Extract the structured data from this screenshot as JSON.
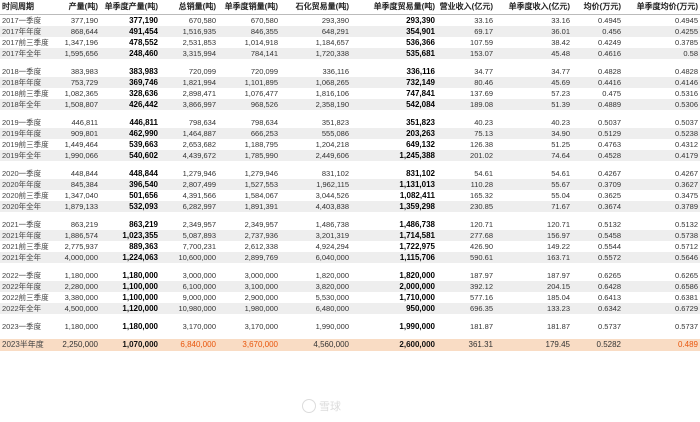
{
  "headers": [
    "时间周期",
    "产量(吨)",
    "单季度产量(吨)",
    "总销量(吨)",
    "单季度销量(吨)",
    "石化贸易量(吨)",
    "单季度贸易量(吨)",
    "营业收入(亿元)",
    "单季度收入(亿元)",
    "均价(万元)",
    "单季度均价(万元)"
  ],
  "bold_cols": [
    2,
    6
  ],
  "total_highlight_cols": [
    2,
    3,
    4,
    6,
    10
  ],
  "groups": [
    [
      [
        "2017一季度",
        "377,190",
        "377,190",
        "670,580",
        "670,580",
        "293,390",
        "293,390",
        "33.16",
        "33.16",
        "0.4945",
        "0.4945"
      ],
      [
        "2017年年度",
        "868,644",
        "491,454",
        "1,516,935",
        "846,355",
        "648,291",
        "354,901",
        "69.17",
        "36.01",
        "0.456",
        "0.4255"
      ],
      [
        "2017前三季度",
        "1,347,196",
        "478,552",
        "2,531,853",
        "1,014,918",
        "1,184,657",
        "536,366",
        "107.59",
        "38.42",
        "0.4249",
        "0.3785"
      ],
      [
        "2017年全年",
        "1,595,656",
        "248,460",
        "3,315,994",
        "784,141",
        "1,720,338",
        "535,681",
        "153.07",
        "45.48",
        "0.4616",
        "0.58"
      ]
    ],
    [
      [
        "2018一季度",
        "383,983",
        "383,983",
        "720,099",
        "720,099",
        "336,116",
        "336,116",
        "34.77",
        "34.77",
        "0.4828",
        "0.4828"
      ],
      [
        "2018年年度",
        "753,729",
        "369,746",
        "1,821,994",
        "1,101,895",
        "1,068,265",
        "732,149",
        "80.46",
        "45.69",
        "0.4416",
        "0.4146"
      ],
      [
        "2018前三季度",
        "1,082,365",
        "328,636",
        "2,898,471",
        "1,076,477",
        "1,816,106",
        "747,841",
        "137.69",
        "57.23",
        "0.475",
        "0.5316"
      ],
      [
        "2018年全年",
        "1,508,807",
        "426,442",
        "3,866,997",
        "968,526",
        "2,358,190",
        "542,084",
        "189.08",
        "51.39",
        "0.4889",
        "0.5306"
      ]
    ],
    [
      [
        "2019一季度",
        "446,811",
        "446,811",
        "798,634",
        "798,634",
        "351,823",
        "351,823",
        "40.23",
        "40.23",
        "0.5037",
        "0.5037"
      ],
      [
        "2019年年度",
        "909,801",
        "462,990",
        "1,464,887",
        "666,253",
        "555,086",
        "203,263",
        "75.13",
        "34.90",
        "0.5129",
        "0.5238"
      ],
      [
        "2019前三季度",
        "1,449,464",
        "539,663",
        "2,653,682",
        "1,188,795",
        "1,204,218",
        "649,132",
        "126.38",
        "51.25",
        "0.4763",
        "0.4312"
      ],
      [
        "2019年全年",
        "1,990,066",
        "540,602",
        "4,439,672",
        "1,785,990",
        "2,449,606",
        "1,245,388",
        "201.02",
        "74.64",
        "0.4528",
        "0.4179"
      ]
    ],
    [
      [
        "2020一季度",
        "448,844",
        "448,844",
        "1,279,946",
        "1,279,946",
        "831,102",
        "831,102",
        "54.61",
        "54.61",
        "0.4267",
        "0.4267"
      ],
      [
        "2020年年度",
        "845,384",
        "396,540",
        "2,807,499",
        "1,527,553",
        "1,962,115",
        "1,131,013",
        "110.28",
        "55.67",
        "0.3709",
        "0.3627"
      ],
      [
        "2020前三季度",
        "1,347,040",
        "501,656",
        "4,391,566",
        "1,584,067",
        "3,044,526",
        "1,082,411",
        "165.32",
        "55.04",
        "0.3625",
        "0.3475"
      ],
      [
        "2020年全年",
        "1,879,133",
        "532,093",
        "6,282,997",
        "1,891,391",
        "4,403,838",
        "1,359,298",
        "230.85",
        "71.67",
        "0.3674",
        "0.3789"
      ]
    ],
    [
      [
        "2021一季度",
        "863,219",
        "863,219",
        "2,349,957",
        "2,349,957",
        "1,486,738",
        "1,486,738",
        "120.71",
        "120.71",
        "0.5132",
        "0.5132"
      ],
      [
        "2021年年度",
        "1,886,574",
        "1,023,355",
        "5,087,893",
        "2,737,936",
        "3,201,319",
        "1,714,581",
        "277.68",
        "156.97",
        "0.5458",
        "0.5738"
      ],
      [
        "2021前三季度",
        "2,775,937",
        "889,363",
        "7,700,231",
        "2,612,338",
        "4,924,294",
        "1,722,975",
        "426.90",
        "149.22",
        "0.5544",
        "0.5712"
      ],
      [
        "2021年全年",
        "4,000,000",
        "1,224,063",
        "10,600,000",
        "2,899,769",
        "6,040,000",
        "1,115,706",
        "590.61",
        "163.71",
        "0.5572",
        "0.5646"
      ]
    ],
    [
      [
        "2022一季度",
        "1,180,000",
        "1,180,000",
        "3,000,000",
        "3,000,000",
        "1,820,000",
        "1,820,000",
        "187.97",
        "187.97",
        "0.6265",
        "0.6265"
      ],
      [
        "2022年年度",
        "2,280,000",
        "1,100,000",
        "6,100,000",
        "3,100,000",
        "3,820,000",
        "2,000,000",
        "392.12",
        "204.15",
        "0.6428",
        "0.6586"
      ],
      [
        "2022前三季度",
        "3,380,000",
        "1,100,000",
        "9,000,000",
        "2,900,000",
        "5,530,000",
        "1,710,000",
        "577.16",
        "185.04",
        "0.6413",
        "0.6381"
      ],
      [
        "2022年全年",
        "4,500,000",
        "1,120,000",
        "10,980,000",
        "1,980,000",
        "6,480,000",
        "950,000",
        "696.35",
        "133.23",
        "0.6342",
        "0.6729"
      ]
    ],
    [
      [
        "2023一季度",
        "1,180,000",
        "1,180,000",
        "3,170,000",
        "3,170,000",
        "1,990,000",
        "1,990,000",
        "181.87",
        "181.87",
        "0.5737",
        "0.5737"
      ]
    ]
  ],
  "total_row": [
    "2023半年度",
    "2,250,000",
    "1,070,000",
    "6,840,000",
    "3,670,000",
    "4,560,000",
    "2,600,000",
    "361.31",
    "179.45",
    "0.5282",
    "0.489"
  ],
  "watermark": {
    "text": "雪球",
    "icon": "xueqiu-logo-icon"
  }
}
